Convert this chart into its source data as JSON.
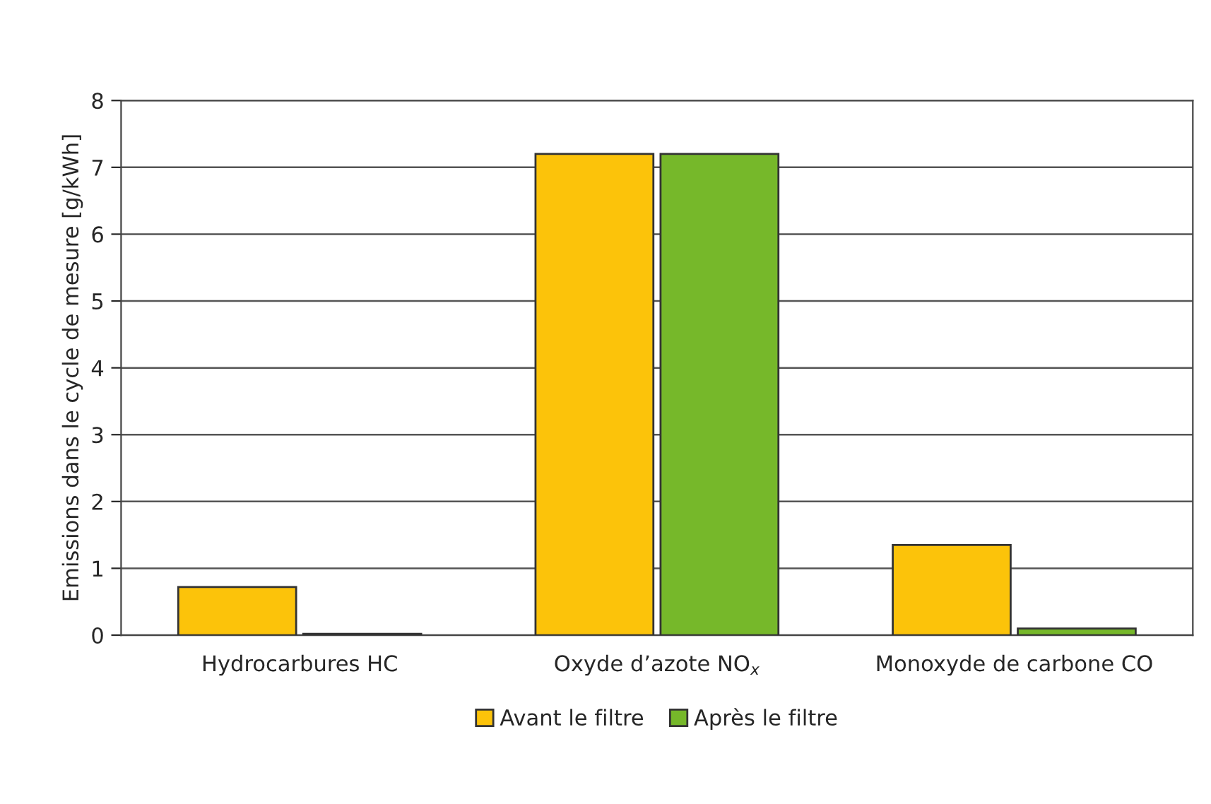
{
  "chart_data": {
    "type": "bar",
    "ylabel": "Emissions dans le cycle de mesure [g/kWh]",
    "categories": [
      "Hydrocarbures HC",
      "Oxyde d’azote NO$_{x}$",
      "Monoxyde de carbone CO"
    ],
    "series": [
      {
        "name": "Avant le filtre",
        "color": "#fcc30a",
        "values": [
          0.72,
          7.2,
          1.35
        ]
      },
      {
        "name": "Après le filtre",
        "color": "#76b82a",
        "values": [
          0.02,
          7.2,
          0.1
        ]
      }
    ],
    "ylim": [
      0,
      8
    ],
    "yticks": [
      0,
      1,
      2,
      3,
      4,
      5,
      6,
      7,
      8
    ],
    "grid": "y",
    "legend": "bottom"
  }
}
